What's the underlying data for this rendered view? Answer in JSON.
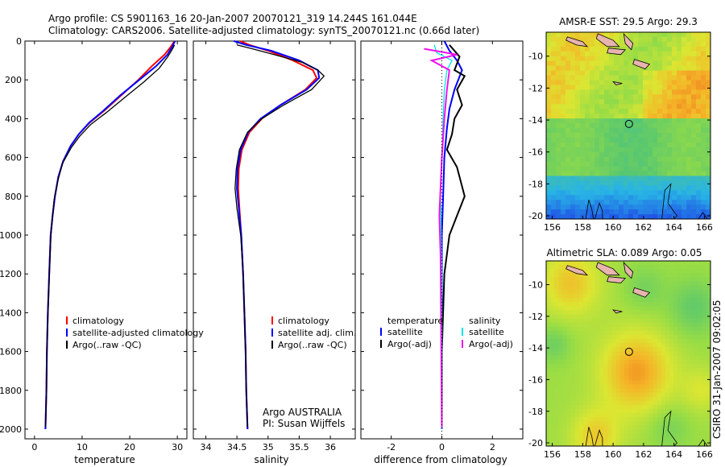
{
  "header": {
    "line1": "Argo profile: CS 5901163_16 20-Jan-2007 20070121_319 14.244S 161.044E",
    "line2": "Climatology: CARS2006. Satellite-adjusted climatology: synTS_20070121.nc (0.66d later)"
  },
  "colors": {
    "climatology": "#ff0000",
    "satellite": "#0000ff",
    "argo": "#000000",
    "sal_satellite": "#00e5e5",
    "sal_argo": "#ee11ee",
    "land": "#e8b4b0"
  },
  "chart_data": [
    {
      "id": "temperature",
      "type": "line",
      "xlabel": "temperature",
      "ylabel": "",
      "xlim": [
        -2,
        32
      ],
      "ylim": [
        2050,
        0
      ],
      "xticks": [
        0,
        10,
        20,
        30
      ],
      "yticks": [
        0,
        200,
        400,
        600,
        800,
        1000,
        1200,
        1400,
        1600,
        1800,
        2000
      ],
      "legend": [
        "climatology",
        "satellite-adjusted climatology",
        "Argo(..raw -QC)"
      ],
      "series": [
        {
          "name": "climatology",
          "x": [
            29.4,
            28.6,
            27.3,
            24.6,
            21.8,
            18.2,
            14.6,
            11.6,
            9.3,
            7.6,
            6.0,
            5.0,
            4.3,
            3.8,
            3.4,
            3.1,
            2.8,
            2.6,
            2.5,
            2.4,
            2.3
          ],
          "depth": [
            0,
            30,
            70,
            130,
            200,
            280,
            360,
            420,
            480,
            540,
            620,
            700,
            800,
            900,
            1000,
            1200,
            1400,
            1600,
            1800,
            1900,
            2000
          ]
        },
        {
          "name": "satellite-adjusted climatology",
          "x": [
            29.5,
            28.9,
            27.9,
            25.5,
            22.0,
            18.0,
            14.4,
            11.5,
            9.3,
            7.6,
            6.0,
            5.0,
            4.3,
            3.8,
            3.4,
            3.1,
            2.8,
            2.6,
            2.5,
            2.4,
            2.3
          ],
          "depth": [
            0,
            30,
            70,
            130,
            200,
            280,
            360,
            420,
            480,
            540,
            620,
            700,
            800,
            900,
            1000,
            1200,
            1400,
            1600,
            1800,
            1900,
            2000
          ]
        },
        {
          "name": "Argo(..raw -QC)",
          "x": [
            29.4,
            29.0,
            28.0,
            26.2,
            23.0,
            19.0,
            15.0,
            11.8,
            9.5,
            7.7,
            5.9,
            4.9,
            4.1,
            3.7,
            3.4,
            3.1,
            2.8,
            2.6,
            2.5,
            2.4,
            2.3
          ],
          "depth": [
            20,
            40,
            80,
            140,
            210,
            290,
            370,
            430,
            490,
            550,
            630,
            720,
            820,
            920,
            1020,
            1220,
            1420,
            1620,
            1820,
            1920,
            1990
          ]
        }
      ]
    },
    {
      "id": "salinity",
      "type": "line",
      "xlabel": "salinity",
      "xlim": [
        33.8,
        36.4
      ],
      "ylim": [
        2050,
        0
      ],
      "xticks": [
        34,
        34.5,
        35,
        35.5,
        36
      ],
      "legend": [
        "climatology",
        "satellite adj. clim.",
        "Argo(..raw -QC)"
      ],
      "annotation": [
        "Argo AUSTRALIA",
        "PI: Susan Wijffels"
      ],
      "series": [
        {
          "name": "climatology",
          "x": [
            34.55,
            34.7,
            35.0,
            35.4,
            35.72,
            35.78,
            35.6,
            35.2,
            34.9,
            34.7,
            34.58,
            34.53,
            34.52,
            34.54,
            34.57,
            34.6,
            34.62,
            34.64,
            34.65,
            34.66,
            34.67
          ],
          "depth": [
            0,
            20,
            50,
            100,
            150,
            190,
            250,
            330,
            400,
            470,
            560,
            660,
            760,
            860,
            1000,
            1200,
            1400,
            1600,
            1800,
            1900,
            2000
          ]
        },
        {
          "name": "satellite adj. clim.",
          "x": [
            34.45,
            34.65,
            35.05,
            35.5,
            35.8,
            35.82,
            35.62,
            35.2,
            34.88,
            34.68,
            34.56,
            34.51,
            34.5,
            34.53,
            34.57,
            34.6,
            34.62,
            34.64,
            34.65,
            34.66,
            34.67
          ],
          "depth": [
            0,
            20,
            50,
            100,
            150,
            190,
            250,
            330,
            400,
            470,
            560,
            660,
            760,
            860,
            1000,
            1200,
            1400,
            1600,
            1800,
            1900,
            2000
          ]
        },
        {
          "name": "Argo(..raw -QC)",
          "x": [
            34.5,
            34.75,
            35.1,
            35.55,
            35.8,
            35.9,
            35.7,
            35.25,
            34.9,
            34.67,
            34.54,
            34.49,
            34.47,
            34.5,
            34.56,
            34.6,
            34.62,
            34.64,
            34.65,
            34.66,
            34.67
          ],
          "depth": [
            20,
            40,
            70,
            110,
            150,
            180,
            250,
            330,
            400,
            470,
            560,
            660,
            760,
            860,
            1000,
            1200,
            1400,
            1600,
            1800,
            1900,
            1990
          ]
        }
      ]
    },
    {
      "id": "difference",
      "type": "line",
      "xlabel": "difference from climatology",
      "xlim": [
        -3.2,
        3.2
      ],
      "ylim": [
        2050,
        0
      ],
      "xticks": [
        -2,
        0,
        2
      ],
      "legend_left_title": "temperature",
      "legend_right_title": "salinity",
      "legend_left": [
        "satellite",
        "Argo(-adj)"
      ],
      "legend_right": [
        "satellite",
        "Argo(-adj)"
      ],
      "series": [
        {
          "name": "temperature satellite",
          "x": [
            0.1,
            0.3,
            0.6,
            0.8,
            0.5,
            0.3,
            0.2,
            0.1,
            0.05,
            0.0,
            0.0,
            0.0,
            0.0
          ],
          "depth": [
            0,
            50,
            100,
            150,
            250,
            350,
            450,
            600,
            800,
            1000,
            1400,
            1800,
            2000
          ]
        },
        {
          "name": "temperature Argo(-adj)",
          "x": [
            0.3,
            0.7,
            0.5,
            0.9,
            0.6,
            0.8,
            0.5,
            0.4,
            0.2,
            0.6,
            0.9,
            0.6,
            0.3,
            0.1,
            0.0,
            0.0
          ],
          "depth": [
            20,
            80,
            150,
            180,
            250,
            330,
            400,
            480,
            560,
            650,
            800,
            900,
            1000,
            1200,
            1600,
            1990
          ]
        },
        {
          "name": "salinity satellite",
          "x": [
            -0.3,
            -0.2,
            0.4,
            0.2,
            0.1,
            0.05,
            0.0,
            -0.05,
            0.0,
            0.0
          ],
          "depth": [
            20,
            60,
            100,
            150,
            250,
            400,
            600,
            800,
            1200,
            2000
          ]
        },
        {
          "name": "salinity Argo(-adj)",
          "x": [
            -0.7,
            0.6,
            -0.4,
            0.3,
            0.2,
            0.1,
            0.0,
            -0.1,
            -0.05,
            0.0
          ],
          "depth": [
            40,
            70,
            100,
            150,
            250,
            400,
            600,
            900,
            1100,
            1990
          ]
        }
      ]
    },
    {
      "id": "sst_map",
      "type": "heatmap",
      "title": "AMSR-E SST: 29.5  Argo: 29.3",
      "xticks": [
        156,
        158,
        160,
        162,
        164,
        166
      ],
      "yticks": [
        -10,
        -12,
        -14,
        -16,
        -18,
        -20
      ],
      "xlim": [
        155.6,
        166.4
      ],
      "ylim": [
        -20.2,
        -8.5
      ],
      "marker": {
        "lon": 161.044,
        "lat": -14.244
      }
    },
    {
      "id": "sla_map",
      "type": "heatmap",
      "title": "Altimetric SLA: 0.089  Argo: 0.05",
      "xticks": [
        156,
        158,
        160,
        162,
        164,
        166
      ],
      "yticks": [
        -10,
        -12,
        -14,
        -16,
        -18,
        -20
      ],
      "xlim": [
        155.6,
        166.4
      ],
      "ylim": [
        -20.2,
        -8.5
      ],
      "marker": {
        "lon": 161.044,
        "lat": -14.244
      }
    }
  ],
  "side_label": "CSIRO 31-Jan-2007 09:02:05"
}
